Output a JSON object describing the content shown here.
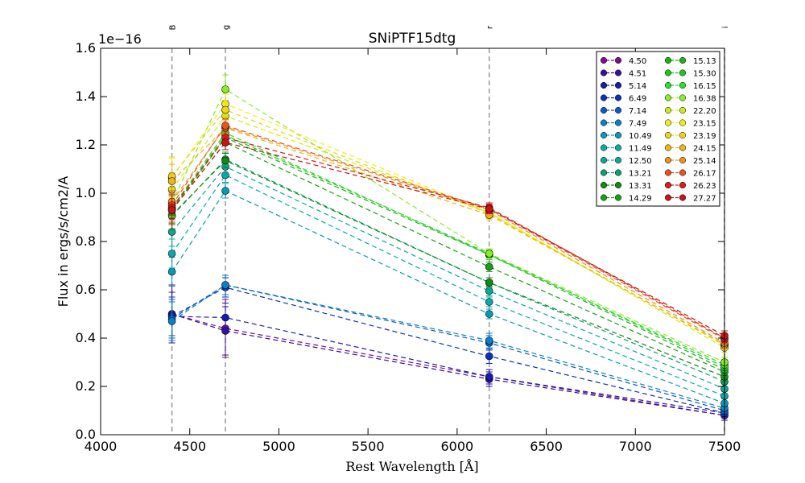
{
  "chart_data": {
    "type": "line",
    "title": "SNiPTF15dtg",
    "xlabel": "Rest Wavelength [Å]",
    "ylabel": "Flux in ergs/s/cm2/A",
    "y_exponent_label": "1e−16",
    "xlim": [
      4000,
      7500
    ],
    "ylim": [
      0.0,
      1.6
    ],
    "xticks": [
      "4000",
      "4500",
      "5000",
      "5500",
      "6000",
      "6500",
      "7000",
      "7500"
    ],
    "yticks": [
      "0.0",
      "0.2",
      "0.4",
      "0.6",
      "0.8",
      "1.0",
      "1.2",
      "1.4",
      "1.6"
    ],
    "grid": false,
    "legend_position": "top-right",
    "bands": [
      {
        "name": "B",
        "x": 4400
      },
      {
        "name": "g",
        "x": 4700
      },
      {
        "name": "r",
        "x": 6180
      },
      {
        "name": "i",
        "x": 7500
      }
    ],
    "x": [
      4400,
      4700,
      6180,
      7500
    ],
    "series": [
      {
        "name": "4.50",
        "color": "#7a0d90",
        "values": [
          0.5,
          0.44,
          0.24,
          0.08
        ],
        "errors": [
          0.12,
          0.12,
          0.03,
          0.02
        ]
      },
      {
        "name": "4.51",
        "color": "#3a0da0",
        "values": [
          0.5,
          0.43,
          0.23,
          0.08
        ],
        "errors": [
          0.12,
          0.1,
          0.03,
          0.02
        ]
      },
      {
        "name": "5.14",
        "color": "#1a1ab0",
        "values": [
          0.49,
          0.485,
          0.24,
          0.09
        ],
        "errors": [
          0.1,
          0.06,
          0.03,
          0.02
        ]
      },
      {
        "name": "6.49",
        "color": "#0a30c0",
        "values": [
          0.49,
          0.61,
          0.325,
          0.09
        ],
        "errors": [
          0.08,
          0.04,
          0.03,
          0.02
        ]
      },
      {
        "name": "7.14",
        "color": "#0a5ac8",
        "values": [
          0.48,
          0.62,
          0.38,
          0.1
        ],
        "errors": [
          0.08,
          0.04,
          0.03,
          0.02
        ]
      },
      {
        "name": "7.49",
        "color": "#0a80c8",
        "values": [
          0.47,
          0.62,
          0.39,
          0.11
        ],
        "errors": [
          0.08,
          0.04,
          0.03,
          0.02
        ]
      },
      {
        "name": "10.49",
        "color": "#0a98b8",
        "values": [
          0.675,
          1.01,
          0.5,
          0.13
        ],
        "errors": [
          0.06,
          0.03,
          0.02,
          0.02
        ]
      },
      {
        "name": "11.49",
        "color": "#0aa8a8",
        "values": [
          0.75,
          1.075,
          0.55,
          0.16
        ],
        "errors": [
          0.06,
          0.03,
          0.02,
          0.02
        ]
      },
      {
        "name": "12.50",
        "color": "#0aa898",
        "values": [
          0.84,
          1.11,
          0.595,
          0.19
        ],
        "errors": [
          0.06,
          0.03,
          0.02,
          0.02
        ]
      },
      {
        "name": "13.21",
        "color": "#0aa070",
        "values": [
          0.905,
          1.14,
          0.63,
          0.22
        ],
        "errors": [
          0.06,
          0.03,
          0.02,
          0.02
        ]
      },
      {
        "name": "13.31",
        "color": "#108a10",
        "values": [
          0.91,
          1.135,
          0.63,
          0.24
        ],
        "errors": [
          0.06,
          0.03,
          0.02,
          0.02
        ]
      },
      {
        "name": "14.29",
        "color": "#18a018",
        "values": [
          0.93,
          1.21,
          0.695,
          0.26
        ],
        "errors": [
          0.06,
          0.03,
          0.02,
          0.02
        ]
      },
      {
        "name": "15.13",
        "color": "#1ab01a",
        "values": [
          0.93,
          1.23,
          0.745,
          0.27
        ],
        "errors": [
          0.06,
          0.03,
          0.02,
          0.02
        ]
      },
      {
        "name": "15.30",
        "color": "#1ac81a",
        "values": [
          0.935,
          1.24,
          0.75,
          0.28
        ],
        "errors": [
          0.06,
          0.03,
          0.02,
          0.02
        ]
      },
      {
        "name": "16.15",
        "color": "#2ae02a",
        "values": [
          0.94,
          1.25,
          0.745,
          0.29
        ],
        "errors": [
          0.06,
          0.03,
          0.02,
          0.02
        ]
      },
      {
        "name": "16.38",
        "color": "#88ee22",
        "values": [
          0.96,
          1.43,
          0.75,
          0.3
        ],
        "errors": [
          0.06,
          0.06,
          0.02,
          0.02
        ]
      },
      {
        "name": "22.20",
        "color": "#c8ee1a",
        "values": [
          1.015,
          1.32,
          0.92,
          0.36
        ],
        "errors": [
          0.07,
          0.04,
          0.02,
          0.02
        ]
      },
      {
        "name": "23.15",
        "color": "#eeee1a",
        "values": [
          1.065,
          1.37,
          0.92,
          0.37
        ],
        "errors": [
          0.08,
          0.04,
          0.02,
          0.02
        ]
      },
      {
        "name": "23.19",
        "color": "#eed41a",
        "values": [
          1.07,
          1.345,
          0.915,
          0.37
        ],
        "errors": [
          0.08,
          0.04,
          0.02,
          0.02
        ]
      },
      {
        "name": "24.15",
        "color": "#eeb41a",
        "values": [
          1.05,
          1.27,
          0.91,
          0.375
        ],
        "errors": [
          0.07,
          0.03,
          0.02,
          0.02
        ]
      },
      {
        "name": "25.14",
        "color": "#ee901a",
        "values": [
          0.965,
          1.275,
          0.93,
          0.38
        ],
        "errors": [
          0.06,
          0.03,
          0.02,
          0.02
        ]
      },
      {
        "name": "26.17",
        "color": "#ee501a",
        "values": [
          0.95,
          1.28,
          0.935,
          0.395
        ],
        "errors": [
          0.06,
          0.03,
          0.02,
          0.02
        ]
      },
      {
        "name": "26.23",
        "color": "#dd1a1a",
        "values": [
          0.94,
          1.23,
          0.94,
          0.4
        ],
        "errors": [
          0.06,
          0.03,
          0.02,
          0.02
        ]
      },
      {
        "name": "27.27",
        "color": "#c81414",
        "values": [
          0.93,
          1.21,
          0.935,
          0.41
        ],
        "errors": [
          0.06,
          0.03,
          0.02,
          0.02
        ]
      }
    ]
  }
}
